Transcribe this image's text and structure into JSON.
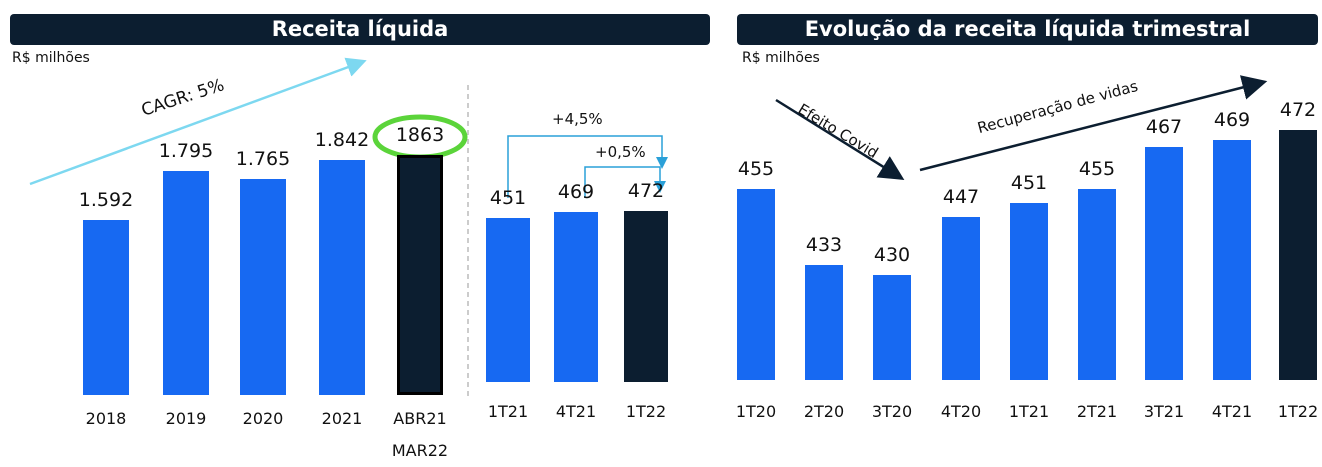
{
  "chart_data": [
    {
      "type": "bar",
      "title": "Receita líquida",
      "subtitle": "R$ milhões",
      "categories": [
        "2018",
        "2019",
        "2020",
        "2021",
        "ABR21 MAR22"
      ],
      "values": [
        1592,
        1795,
        1765,
        1842,
        1863
      ],
      "value_labels": [
        "1.592",
        "1.795",
        "1.765",
        "1.842",
        "1863"
      ],
      "colors": [
        "#1769f2",
        "#1769f2",
        "#1769f2",
        "#1769f2",
        "#0c1e30"
      ],
      "annotations": [
        "CAGR: 5%"
      ]
    },
    {
      "type": "bar",
      "categories": [
        "1T21",
        "4T21",
        "1T22"
      ],
      "values": [
        451,
        469,
        472
      ],
      "colors": [
        "#1769f2",
        "#1769f2",
        "#0c1e30"
      ],
      "annotations": [
        "+4,5%",
        "+0,5%"
      ]
    },
    {
      "type": "bar",
      "title": "Evolução da receita líquida trimestral",
      "subtitle": "R$ milhões",
      "categories": [
        "1T20",
        "2T20",
        "3T20",
        "4T20",
        "1T21",
        "2T21",
        "3T21",
        "4T21",
        "1T22"
      ],
      "values": [
        455,
        433,
        430,
        447,
        451,
        455,
        467,
        469,
        472
      ],
      "colors": [
        "#1769f2",
        "#1769f2",
        "#1769f2",
        "#1769f2",
        "#1769f2",
        "#1769f2",
        "#1769f2",
        "#1769f2",
        "#0c1e30"
      ],
      "annotations": [
        "Efeito Covid",
        "Recuperação de vidas"
      ]
    }
  ]
}
